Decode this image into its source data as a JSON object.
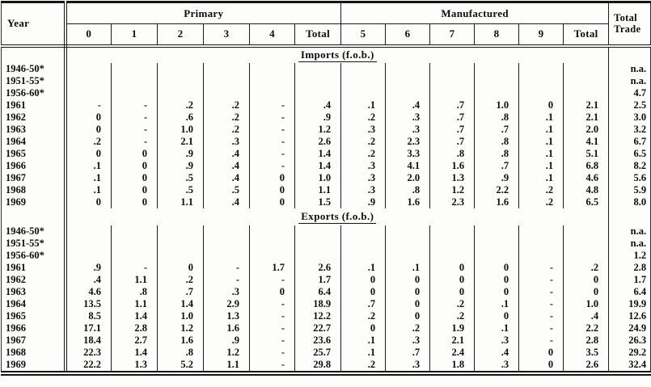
{
  "table": {
    "header": {
      "year": "Year",
      "primary": "Primary",
      "manufactured": "Manufactured",
      "total_trade_line1": "Total",
      "total_trade_line2": "Trade",
      "sub": [
        "0",
        "1",
        "2",
        "3",
        "4",
        "Total",
        "5",
        "6",
        "7",
        "8",
        "9",
        "Total"
      ]
    },
    "sections": [
      {
        "title": "Imports (f.o.b.)",
        "rows": [
          {
            "year": "1946-50*",
            "values": [],
            "total_trade": "n.a."
          },
          {
            "year": "1951-55*",
            "values": [],
            "total_trade": "n.a."
          },
          {
            "year": "1956-60*",
            "values": [],
            "total_trade": "4.7"
          },
          {
            "year": "1961",
            "values": [
              "-",
              "-",
              ".2",
              ".2",
              "-",
              ".4",
              ".1",
              ".4",
              ".7",
              "1.0",
              "0",
              "2.1"
            ],
            "total_trade": "2.5"
          },
          {
            "year": "1962",
            "values": [
              "0",
              "-",
              ".6",
              ".2",
              "-",
              ".9",
              ".2",
              ".3",
              ".7",
              ".8",
              ".1",
              "2.1"
            ],
            "total_trade": "3.0"
          },
          {
            "year": "1963",
            "values": [
              "0",
              "-",
              "1.0",
              ".2",
              "-",
              "1.2",
              ".3",
              ".3",
              ".7",
              ".7",
              ".1",
              "2.0"
            ],
            "total_trade": "3.2"
          },
          {
            "year": "1964",
            "values": [
              ".2",
              "-",
              "2.1",
              ".3",
              "-",
              "2.6",
              ".2",
              "2.3",
              ".7",
              ".8",
              ".1",
              "4.1"
            ],
            "total_trade": "6.7"
          },
          {
            "year": "1965",
            "values": [
              "0",
              "0",
              ".9",
              ".4",
              "-",
              "1.4",
              ".2",
              "3.3",
              ".8",
              ".8",
              ".1",
              "5.1"
            ],
            "total_trade": "6.5"
          },
          {
            "year": "1966",
            "values": [
              ".1",
              "0",
              ".9",
              ".4",
              "-",
              "1.4",
              ".3",
              "4.1",
              "1.6",
              ".7",
              ".1",
              "6.8"
            ],
            "total_trade": "8.2"
          },
          {
            "year": "1967",
            "values": [
              ".1",
              "0",
              ".5",
              ".4",
              "0",
              "1.0",
              ".3",
              "2.0",
              "1.3",
              ".9",
              ".1",
              "4.6"
            ],
            "total_trade": "5.6"
          },
          {
            "year": "1968",
            "values": [
              ".1",
              "0",
              ".5",
              ".5",
              "0",
              "1.1",
              ".3",
              ".8",
              "1.2",
              "2.2",
              ".2",
              "4.8"
            ],
            "total_trade": "5.9"
          },
          {
            "year": "1969",
            "values": [
              "0",
              "0",
              "1.1",
              ".4",
              "0",
              "1.5",
              ".9",
              "1.6",
              "2.3",
              "1.6",
              ".2",
              "6.5"
            ],
            "total_trade": "8.0"
          }
        ]
      },
      {
        "title": "Exports (f.o.b.)",
        "rows": [
          {
            "year": "1946-50*",
            "values": [],
            "total_trade": "n.a."
          },
          {
            "year": "1951-55*",
            "values": [],
            "total_trade": "n.a."
          },
          {
            "year": "1956-60*",
            "values": [],
            "total_trade": "1.2"
          },
          {
            "year": "1961",
            "values": [
              ".9",
              "-",
              "0",
              "-",
              "1.7",
              "2.6",
              ".1",
              ".1",
              "0",
              "0",
              "-",
              ".2"
            ],
            "total_trade": "2.8"
          },
          {
            "year": "1962",
            "values": [
              ".4",
              "1.1",
              ".2",
              "-",
              "-",
              "1.7",
              "0",
              "0",
              "0",
              "0",
              "-",
              "0"
            ],
            "total_trade": "1.7"
          },
          {
            "year": "1963",
            "values": [
              "4.6",
              ".8",
              ".7",
              ".3",
              "0",
              "6.4",
              "0",
              "0",
              "0",
              "0",
              "-",
              "0"
            ],
            "total_trade": "6.4"
          },
          {
            "year": "1964",
            "values": [
              "13.5",
              "1.1",
              "1.4",
              "2.9",
              "-",
              "18.9",
              ".7",
              "0",
              ".2",
              ".1",
              "-",
              "1.0"
            ],
            "total_trade": "19.9"
          },
          {
            "year": "1965",
            "values": [
              "8.5",
              "1.4",
              "1.0",
              "1.3",
              "-",
              "12.2",
              ".2",
              "0",
              ".2",
              "0",
              "-",
              ".4"
            ],
            "total_trade": "12.6"
          },
          {
            "year": "1966",
            "values": [
              "17.1",
              "2.8",
              "1.2",
              "1.6",
              "-",
              "22.7",
              "0",
              ".2",
              "1.9",
              ".1",
              "-",
              "2.2"
            ],
            "total_trade": "24.9"
          },
          {
            "year": "1967",
            "values": [
              "18.4",
              "2.7",
              "1.6",
              ".9",
              "-",
              "23.6",
              ".1",
              ".3",
              "2.1",
              ".3",
              "-",
              "2.8"
            ],
            "total_trade": "26.3"
          },
          {
            "year": "1968",
            "values": [
              "22.3",
              "1.4",
              ".8",
              "1.2",
              "-",
              "25.7",
              ".1",
              ".7",
              "2.4",
              ".4",
              "0",
              "3.5"
            ],
            "total_trade": "29.2"
          },
          {
            "year": "1969",
            "values": [
              "22.2",
              "1.3",
              "5.2",
              "1.1",
              "-",
              "29.8",
              ".2",
              ".3",
              "1.8",
              ".3",
              "0",
              "2.6"
            ],
            "total_trade": "32.4"
          }
        ]
      }
    ]
  }
}
